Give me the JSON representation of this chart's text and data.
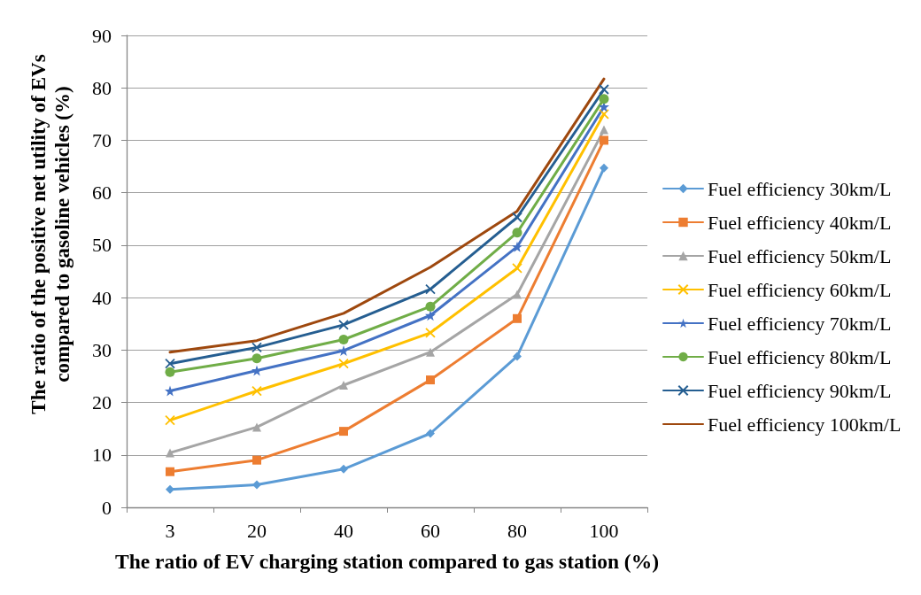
{
  "chart_data": {
    "type": "line",
    "xlabel": "The ratio of EV charging station compared to gas station (%)",
    "ylabel": "The ratio of the positive net utility of EVs compared to gasoline vehicles (%)",
    "categories": [
      "3",
      "20",
      "40",
      "60",
      "80",
      "100"
    ],
    "ylim": [
      0,
      90
    ],
    "yticks": [
      0,
      10,
      20,
      30,
      40,
      50,
      60,
      70,
      80,
      90
    ],
    "grid": "y",
    "legend": "right",
    "line_style": "solid",
    "series": [
      {
        "name": "Fuel efficiency 30km/L",
        "color": "#5b9bd5",
        "marker": "diamond",
        "values": [
          3.4,
          4.3,
          7.3,
          14.1,
          28.8,
          64.7
        ]
      },
      {
        "name": "Fuel efficiency 40km/L",
        "color": "#ed7d31",
        "marker": "square",
        "values": [
          6.8,
          9.0,
          14.5,
          24.3,
          36.0,
          70.0
        ]
      },
      {
        "name": "Fuel efficiency 50km/L",
        "color": "#a5a5a5",
        "marker": "triangle",
        "values": [
          10.4,
          15.3,
          23.3,
          29.6,
          40.6,
          72.0
        ]
      },
      {
        "name": "Fuel efficiency 60km/L",
        "color": "#ffc000",
        "marker": "cross",
        "values": [
          16.6,
          22.2,
          27.4,
          33.3,
          45.6,
          75.0
        ]
      },
      {
        "name": "Fuel efficiency 70km/L",
        "color": "#4472c4",
        "marker": "star",
        "values": [
          22.2,
          26.1,
          29.9,
          36.6,
          49.7,
          76.4
        ]
      },
      {
        "name": "Fuel efficiency 80km/L",
        "color": "#70ad47",
        "marker": "circle",
        "values": [
          25.8,
          28.4,
          32.0,
          38.3,
          52.4,
          77.9
        ]
      },
      {
        "name": "Fuel efficiency 90km/L",
        "color": "#255e91",
        "marker": "cross",
        "values": [
          27.4,
          30.5,
          34.8,
          41.6,
          55.3,
          79.7
        ]
      },
      {
        "name": "Fuel efficiency 100km/L",
        "color": "#9e480e",
        "marker": "none",
        "values": [
          29.6,
          31.8,
          37.0,
          45.8,
          56.5,
          81.7
        ]
      }
    ]
  }
}
